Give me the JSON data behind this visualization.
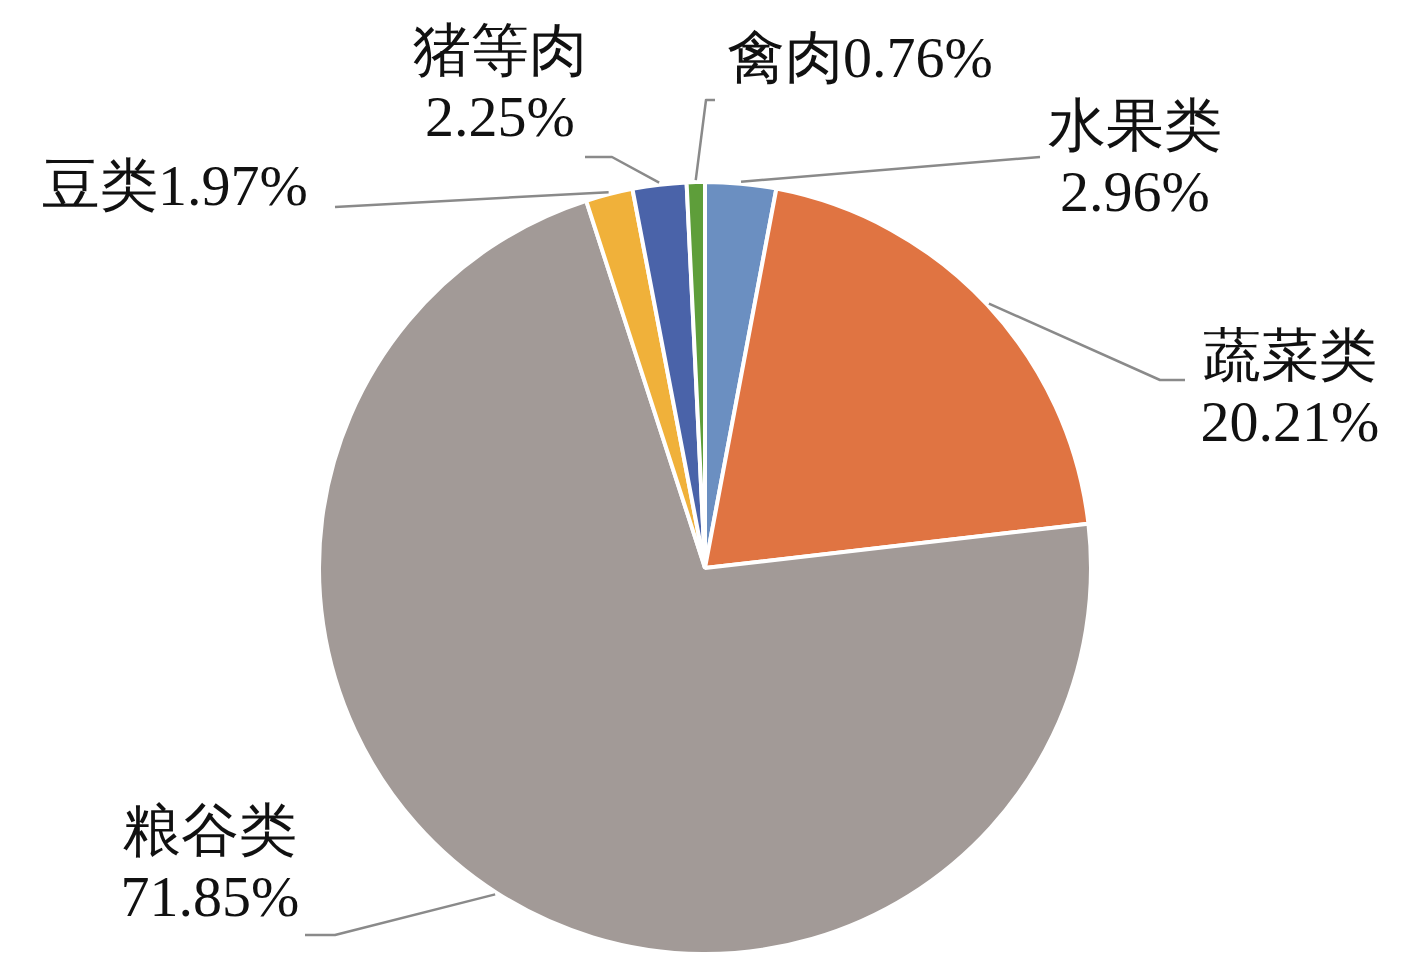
{
  "chart_data": {
    "type": "pie",
    "categories": [
      "水果类",
      "蔬菜类",
      "粮谷类",
      "豆类",
      "猪等肉",
      "禽肉"
    ],
    "values": [
      2.96,
      20.21,
      71.85,
      1.97,
      2.25,
      0.76
    ],
    "value_labels": [
      "2.96%",
      "20.21%",
      "71.85%",
      "1.97%",
      "2.25%",
      "0.76%"
    ],
    "colors": [
      "#6b8fc1",
      "#e07442",
      "#a29a97",
      "#f0b13a",
      "#4a63a9",
      "#5e9e3a"
    ]
  }
}
